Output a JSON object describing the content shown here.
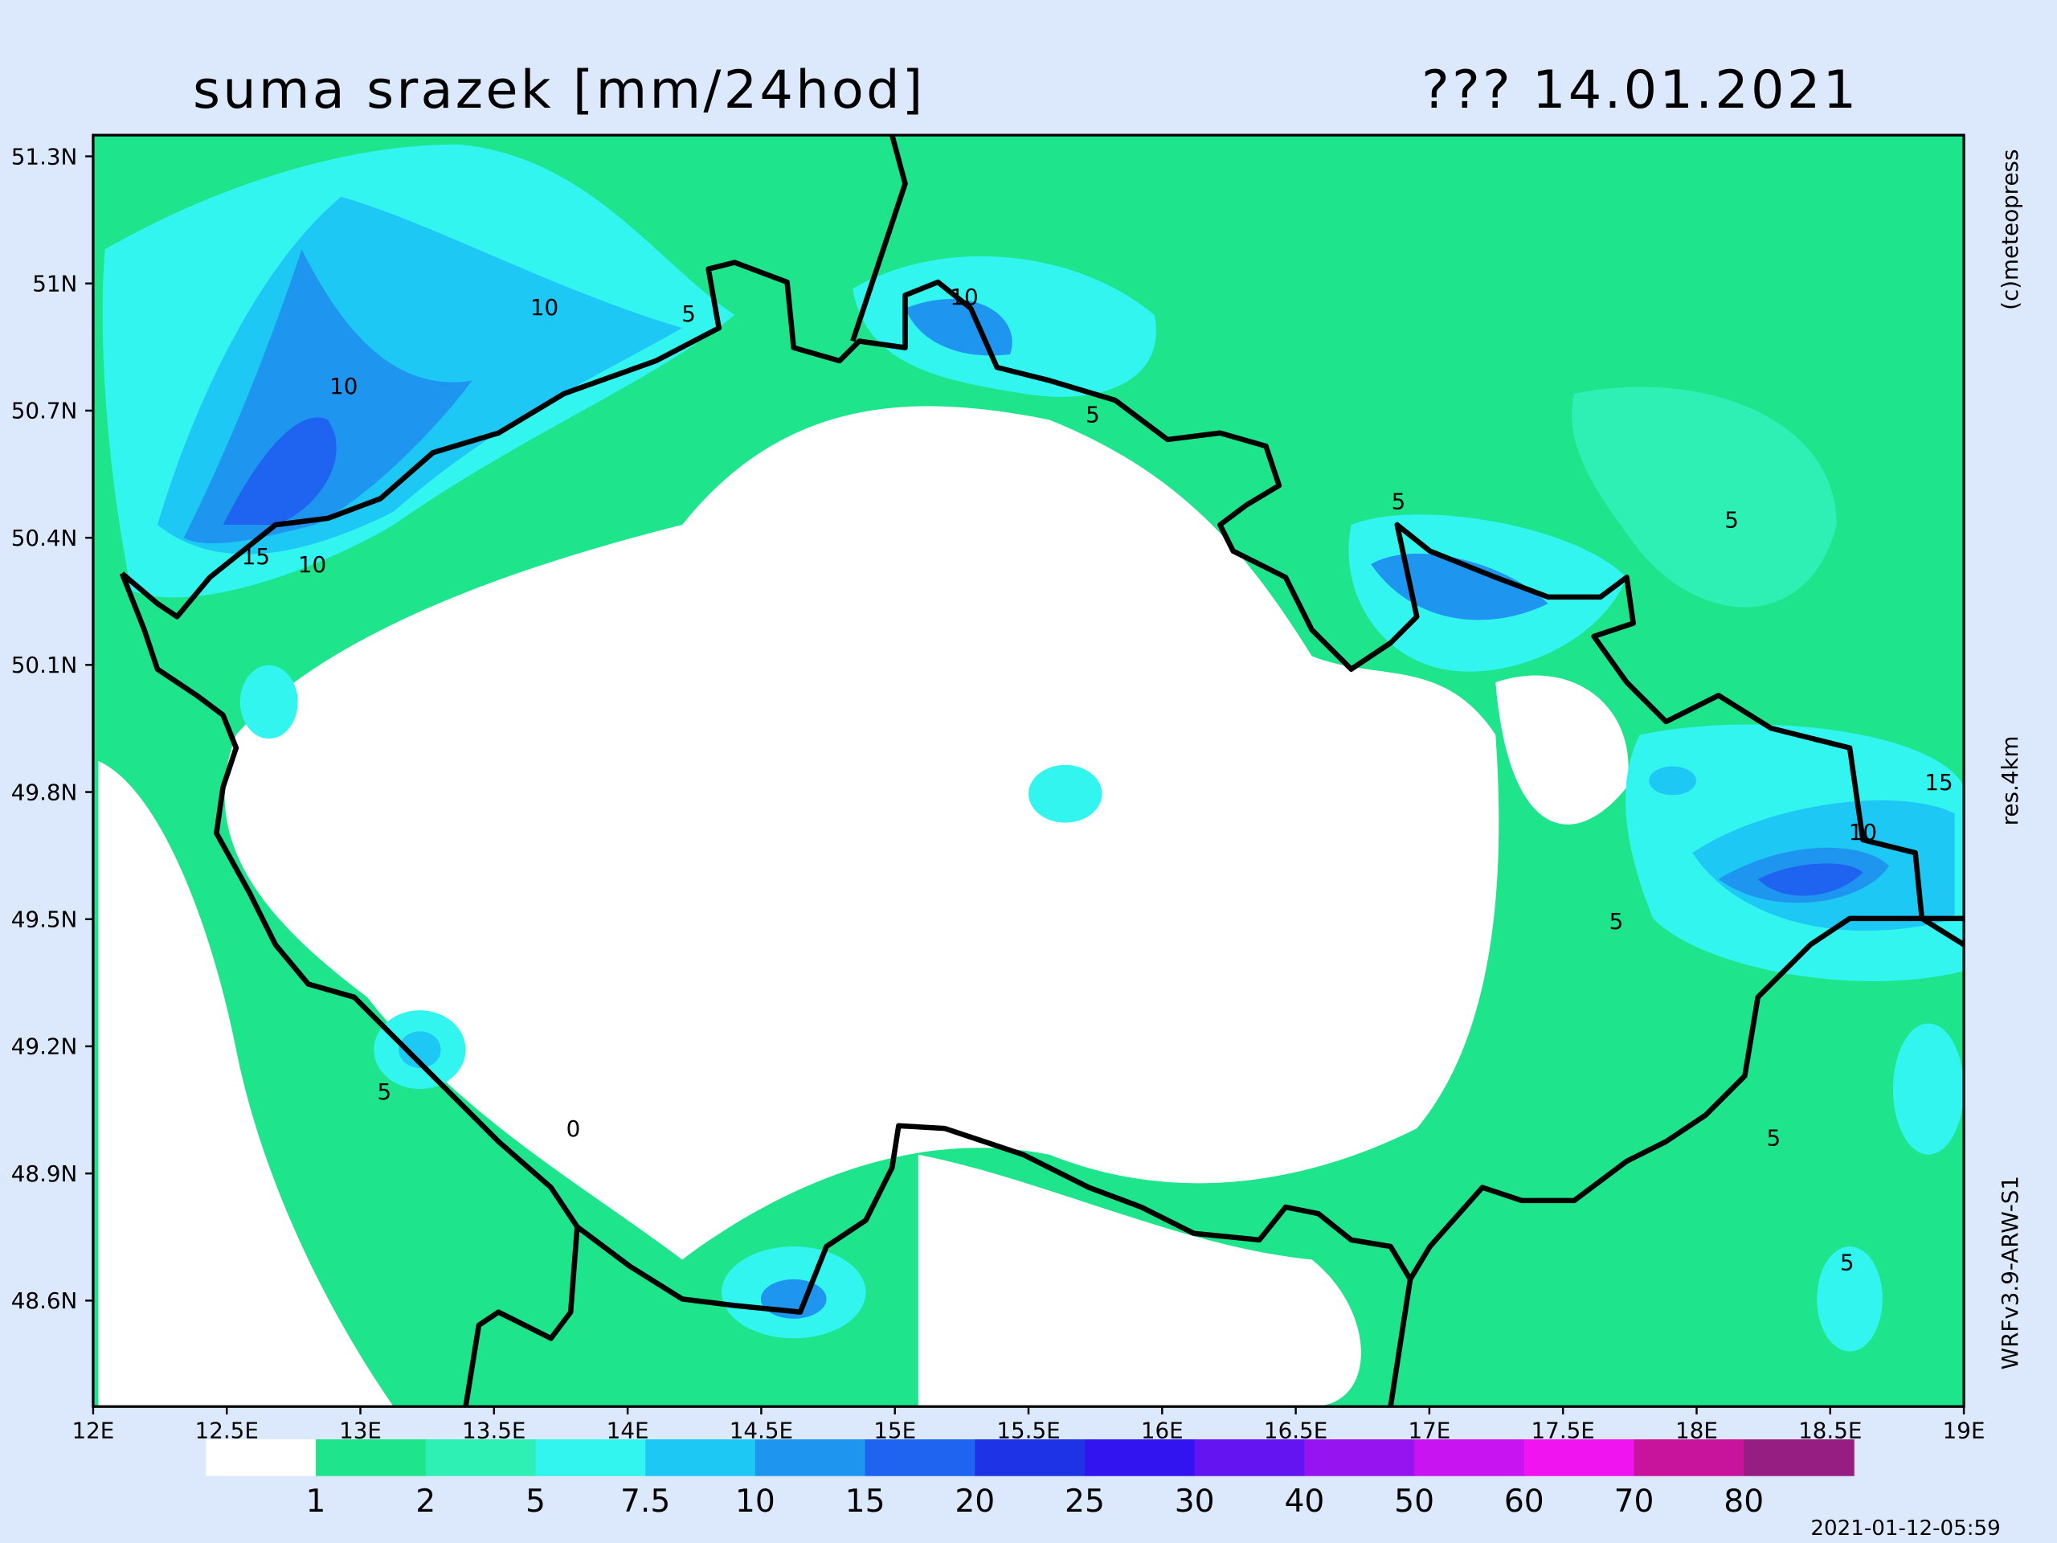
{
  "title": "suma srazek [mm/24hod]",
  "date_label": "??? 14.01.2021",
  "map": {
    "xlim": [
      12,
      19
    ],
    "ylim": [
      48.35,
      51.35
    ],
    "lat_ticks": [
      {
        "value": 51.3,
        "label": "51.3N"
      },
      {
        "value": 51,
        "label": "51N"
      },
      {
        "value": 50.7,
        "label": "50.7N"
      },
      {
        "value": 50.4,
        "label": "50.4N"
      },
      {
        "value": 50.1,
        "label": "50.1N"
      },
      {
        "value": 49.8,
        "label": "49.8N"
      },
      {
        "value": 49.5,
        "label": "49.5N"
      },
      {
        "value": 49.2,
        "label": "49.2N"
      },
      {
        "value": 48.9,
        "label": "48.9N"
      },
      {
        "value": 48.6,
        "label": "48.6N"
      }
    ],
    "lon_ticks": [
      {
        "value": 12,
        "label": "12E"
      },
      {
        "value": 12.5,
        "label": "12.5E"
      },
      {
        "value": 13,
        "label": "13E"
      },
      {
        "value": 13.5,
        "label": "13.5E"
      },
      {
        "value": 14,
        "label": "14E"
      },
      {
        "value": 14.5,
        "label": "14.5E"
      },
      {
        "value": 15,
        "label": "15E"
      },
      {
        "value": 15.5,
        "label": "15.5E"
      },
      {
        "value": 16,
        "label": "16E"
      },
      {
        "value": 16.5,
        "label": "16.5E"
      },
      {
        "value": 17,
        "label": "17E"
      },
      {
        "value": 17.5,
        "label": "17.5E"
      },
      {
        "value": 18,
        "label": "18E"
      },
      {
        "value": 18.5,
        "label": "18.5E"
      },
      {
        "value": 19,
        "label": "19E"
      }
    ],
    "contour_labels": [
      10,
      5,
      10,
      15,
      10,
      10,
      5,
      5,
      5,
      15,
      10,
      5,
      5,
      0,
      5,
      5
    ]
  },
  "colorbar": {
    "levels": [
      1,
      2,
      5,
      7.5,
      10,
      15,
      20,
      25,
      30,
      40,
      50,
      60,
      70,
      80
    ],
    "colors": [
      "#ffffff",
      "#1ee48c",
      "#2ef0b4",
      "#32f5f0",
      "#1ec8f5",
      "#1e96f0",
      "#1e64f0",
      "#1e32e6",
      "#3214f0",
      "#6414f0",
      "#9614f0",
      "#c814f0",
      "#f014f0",
      "#c8149c",
      "#961e82"
    ]
  },
  "copyright": "(c)meteopress",
  "resolution": "res.4km",
  "model": "WRFv3.9-ARW-S1",
  "timestamp": "2021-01-12-05:59"
}
